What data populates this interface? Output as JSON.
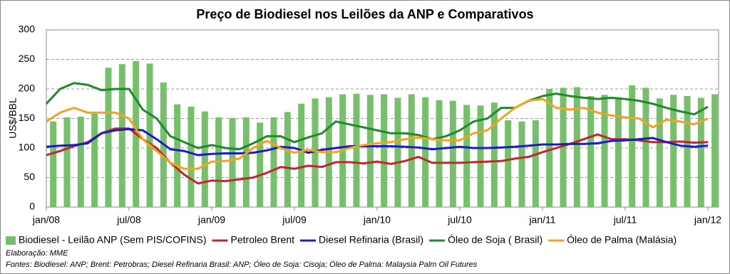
{
  "chart_data": {
    "type": "combo",
    "title": "Preço de Biodiesel nos Leilões da ANP e Comparativos",
    "y_label": "US$/BBL",
    "categories": [
      "jan/08",
      null,
      null,
      null,
      null,
      null,
      "jul/08",
      null,
      null,
      null,
      null,
      null,
      "jan/09",
      null,
      null,
      null,
      null,
      null,
      "jul/09",
      null,
      null,
      null,
      null,
      null,
      "jan/10",
      null,
      null,
      null,
      null,
      null,
      "jul/10",
      null,
      null,
      null,
      null,
      null,
      "jan/11",
      null,
      null,
      null,
      null,
      null,
      "jul/11",
      null,
      null,
      null,
      null,
      null,
      "jan/12"
    ],
    "ylim": [
      0,
      300
    ],
    "yticks": [
      0,
      50,
      100,
      150,
      200,
      250,
      300
    ],
    "grid": true,
    "legend": "bottom",
    "series": [
      {
        "name": "Biodiesel - Leilão ANP (Sem PIS/COFINS)",
        "type": "bar",
        "color": "#77bf6c",
        "values": [
          145,
          152,
          153,
          158,
          236,
          242,
          247,
          243,
          211,
          174,
          170,
          162,
          152,
          151,
          152,
          143,
          152,
          161,
          175,
          184,
          186,
          191,
          192,
          190,
          191,
          185,
          191,
          186,
          181,
          180,
          173,
          172,
          177,
          147,
          145,
          147,
          200,
          202,
          203,
          188,
          190,
          185,
          206,
          202,
          184,
          190,
          188,
          185,
          191
        ]
      },
      {
        "name": "Petroleo Brent",
        "type": "line",
        "color": "#c0282d",
        "values": [
          88,
          95,
          103,
          110,
          125,
          133,
          133,
          115,
          100,
          75,
          55,
          40,
          45,
          44,
          47,
          50,
          58,
          68,
          65,
          70,
          68,
          76,
          76,
          74,
          77,
          73,
          78,
          85,
          75,
          75,
          75,
          76,
          77,
          78,
          82,
          85,
          93,
          100,
          107,
          115,
          123,
          115,
          115,
          113,
          110,
          110,
          111,
          109,
          110
        ]
      },
      {
        "name": "Diesel Refinaria (Brasil)",
        "type": "line",
        "color": "#1c1cc4",
        "values": [
          102,
          104,
          105,
          108,
          125,
          130,
          132,
          130,
          115,
          98,
          95,
          88,
          90,
          91,
          91,
          92,
          96,
          102,
          100,
          92,
          97,
          100,
          103,
          103,
          103,
          103,
          102,
          101,
          98,
          100,
          102,
          100,
          100,
          101,
          102,
          104,
          106,
          106,
          107,
          107,
          108,
          112,
          113,
          115,
          117,
          110,
          104,
          102,
          104
        ]
      },
      {
        "name": "Óleo de Soja ( Brasil)",
        "type": "line",
        "color": "#1e8a2a",
        "values": [
          175,
          200,
          210,
          207,
          198,
          200,
          200,
          165,
          150,
          120,
          110,
          100,
          105,
          100,
          98,
          108,
          120,
          120,
          110,
          118,
          125,
          145,
          140,
          135,
          130,
          125,
          125,
          122,
          115,
          120,
          130,
          145,
          150,
          168,
          168,
          180,
          188,
          192,
          188,
          185,
          183,
          185,
          183,
          180,
          175,
          168,
          162,
          157,
          170
        ]
      },
      {
        "name": "Óleo de Palma (Malásia)",
        "type": "line",
        "color": "#f5a21f",
        "values": [
          145,
          160,
          168,
          160,
          160,
          160,
          150,
          115,
          95,
          75,
          65,
          65,
          77,
          78,
          82,
          100,
          112,
          100,
          92,
          97,
          93,
          93,
          100,
          105,
          108,
          110,
          115,
          118,
          115,
          113,
          113,
          125,
          130,
          150,
          168,
          180,
          183,
          168,
          165,
          168,
          160,
          155,
          152,
          150,
          135,
          148,
          145,
          140,
          150
        ]
      }
    ],
    "notes": [
      "Elaboração: MME",
      "Fontes:  Biodiesel: ANP; Brent: Petrobras; Diesel Refinaria Brasil: ANP; Óleo de Soja: Cisoja; Óleo de Palma: Malaysia Palm Oil Futures"
    ]
  }
}
